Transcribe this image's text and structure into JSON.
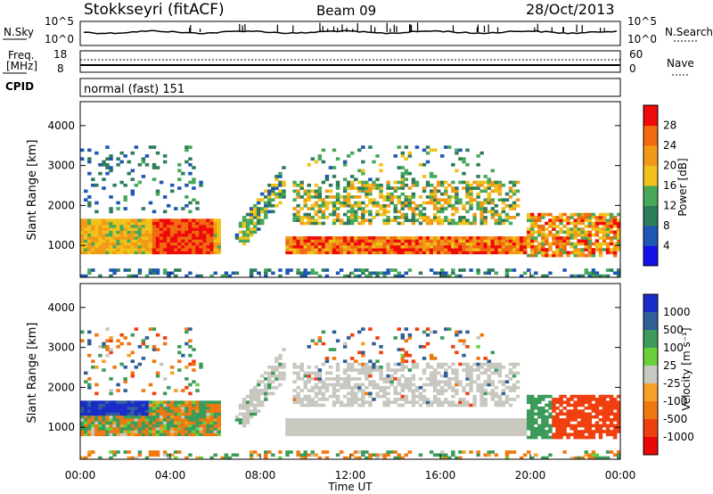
{
  "header": {
    "station": "Stokkseyri (fitACF)",
    "beam": "Beam 09",
    "date": "28/Oct/2013"
  },
  "noise_panel": {
    "left_label": "N.Sky",
    "right_label": "N.Search",
    "left_ticks": [
      "10^5",
      "10^0"
    ],
    "right_ticks": [
      "10^5",
      "10^0"
    ]
  },
  "freq_panel": {
    "left_label_1": "Freq.",
    "left_label_2": "[MHz]",
    "right_label": "Nave",
    "left_ticks": [
      "18",
      "8"
    ],
    "right_ticks": [
      "60",
      "0"
    ]
  },
  "cpid_panel": {
    "label": "CPID",
    "text": "normal (fast) 151"
  },
  "chart_data": [
    {
      "type": "heatmap",
      "name": "power",
      "ylabel": "Slant Range [km]",
      "ylim": [
        200,
        4600
      ],
      "yticks": [
        "4000",
        "3000",
        "2000",
        "1000"
      ],
      "xlim": [
        "00:00",
        "24:00"
      ],
      "colorbar_label": "Power [dB]",
      "colorbar_ticks": [
        "28",
        "24",
        "20",
        "16",
        "12",
        "8",
        "4"
      ],
      "colorbar_colors": [
        "#1410e6",
        "#1e56b4",
        "#2e7d5a",
        "#48a85a",
        "#f0c21a",
        "#f29a18",
        "#f06a10",
        "#ee0a0a"
      ],
      "range_min_db": 0,
      "range_max_db": 32
    },
    {
      "type": "heatmap",
      "name": "velocity",
      "ylabel": "Slant Range [km]",
      "ylim": [
        200,
        4600
      ],
      "yticks": [
        "4000",
        "3000",
        "2000",
        "1000"
      ],
      "xlim": [
        "00:00",
        "24:00"
      ],
      "xlabel": "Time UT",
      "xticks": [
        "00:00",
        "04:00",
        "08:00",
        "12:00",
        "16:00",
        "20:00",
        "00:00"
      ],
      "colorbar_label": "Velocity [m s⁻¹]",
      "colorbar_ticks": [
        "1000",
        "500",
        "100",
        "25",
        "-25",
        "-100",
        "-500",
        "-1000"
      ],
      "colorbar_colors": [
        "#1a2cc8",
        "#2f5f96",
        "#3c9b5a",
        "#6ad03a",
        "#c8c8c0",
        "#f5a028",
        "#f07810",
        "#f04010",
        "#e80808"
      ]
    }
  ]
}
